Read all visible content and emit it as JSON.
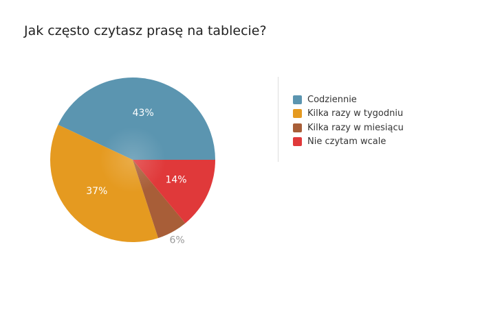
{
  "chart_data": {
    "type": "pie",
    "title": "Jak często czytasz prasę na tablecie?",
    "slices": [
      {
        "label": "Codziennie",
        "value": 43,
        "display": "43%",
        "color": "#5b95b0",
        "label_color": "#ffffff",
        "label_pos": "inside"
      },
      {
        "label": "Kilka razy w tygodniu",
        "value": 37,
        "display": "37%",
        "color": "#e59a20",
        "label_color": "#ffffff",
        "label_pos": "inside"
      },
      {
        "label": "Kilka razy w miesiącu",
        "value": 6,
        "display": "6%",
        "color": "#a85e38",
        "label_color": "#999999",
        "label_pos": "outside"
      },
      {
        "label": "Nie czytam wcale",
        "value": 14,
        "display": "14%",
        "color": "#e0393a",
        "label_color": "#ffffff",
        "label_pos": "inside"
      }
    ],
    "legend_position": "right"
  }
}
